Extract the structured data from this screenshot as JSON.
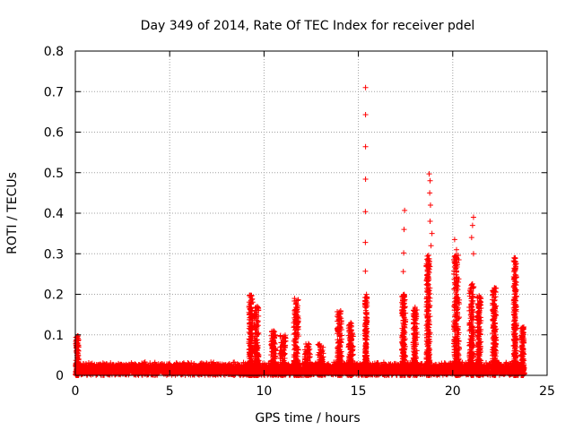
{
  "chart_data": {
    "type": "scatter",
    "title": "Day 349 of 2014, Rate Of TEC Index for receiver pdel",
    "xlabel": "GPS time / hours",
    "ylabel": "ROTI / TECUs",
    "xlim": [
      0,
      25
    ],
    "ylim": [
      0,
      0.8
    ],
    "x_ticks": [
      0,
      5,
      10,
      15,
      20,
      25
    ],
    "x_tick_labels": [
      "0",
      "5",
      "10",
      "15",
      "20",
      "25"
    ],
    "y_ticks": [
      0,
      0.1,
      0.2,
      0.3,
      0.4,
      0.5,
      0.6,
      0.7,
      0.8
    ],
    "y_tick_labels": [
      "0",
      "0.1",
      "0.2",
      "0.3",
      "0.4",
      "0.5",
      "0.6",
      "0.7",
      "0.8"
    ],
    "grid": true,
    "marker": "+",
    "colors": {
      "marker": "#ff0000",
      "grid": "#a0a0a0",
      "axis": "#000000"
    },
    "background": {
      "x_range": [
        0,
        23.8
      ],
      "level": 0.025,
      "spread": 0.012
    },
    "clusters": [
      {
        "x": 0.1,
        "width": 0.15,
        "peak": 0.1
      },
      {
        "x": 9.3,
        "width": 0.2,
        "peak": 0.2
      },
      {
        "x": 9.6,
        "width": 0.25,
        "peak": 0.17
      },
      {
        "x": 10.5,
        "width": 0.25,
        "peak": 0.11
      },
      {
        "x": 11.0,
        "width": 0.3,
        "peak": 0.1
      },
      {
        "x": 11.7,
        "width": 0.25,
        "peak": 0.19
      },
      {
        "x": 12.3,
        "width": 0.3,
        "peak": 0.08
      },
      {
        "x": 13.0,
        "width": 0.3,
        "peak": 0.08
      },
      {
        "x": 14.0,
        "width": 0.25,
        "peak": 0.16
      },
      {
        "x": 14.6,
        "width": 0.25,
        "peak": 0.13
      },
      {
        "x": 15.4,
        "width": 0.12,
        "peak": 0.2
      },
      {
        "x": 17.4,
        "width": 0.2,
        "peak": 0.2
      },
      {
        "x": 18.0,
        "width": 0.2,
        "peak": 0.17
      },
      {
        "x": 18.7,
        "width": 0.2,
        "peak": 0.3
      },
      {
        "x": 20.2,
        "width": 0.3,
        "peak": 0.3
      },
      {
        "x": 21.0,
        "width": 0.25,
        "peak": 0.23
      },
      {
        "x": 21.4,
        "width": 0.2,
        "peak": 0.2
      },
      {
        "x": 22.2,
        "width": 0.2,
        "peak": 0.22
      },
      {
        "x": 23.3,
        "width": 0.15,
        "peak": 0.29
      },
      {
        "x": 23.7,
        "width": 0.15,
        "peak": 0.12
      }
    ],
    "highlighted_points": [
      {
        "x": 15.38,
        "y": 0.71
      },
      {
        "x": 15.38,
        "y": 0.643
      },
      {
        "x": 15.38,
        "y": 0.564
      },
      {
        "x": 15.38,
        "y": 0.484
      },
      {
        "x": 15.37,
        "y": 0.404
      },
      {
        "x": 15.37,
        "y": 0.328
      },
      {
        "x": 15.37,
        "y": 0.257
      },
      {
        "x": 17.45,
        "y": 0.407
      },
      {
        "x": 17.42,
        "y": 0.36
      },
      {
        "x": 17.4,
        "y": 0.302
      },
      {
        "x": 17.38,
        "y": 0.256
      },
      {
        "x": 18.75,
        "y": 0.497
      },
      {
        "x": 18.8,
        "y": 0.48
      },
      {
        "x": 18.78,
        "y": 0.45
      },
      {
        "x": 18.82,
        "y": 0.42
      },
      {
        "x": 18.8,
        "y": 0.38
      },
      {
        "x": 18.9,
        "y": 0.35
      },
      {
        "x": 18.85,
        "y": 0.32
      },
      {
        "x": 20.1,
        "y": 0.335
      },
      {
        "x": 20.2,
        "y": 0.31
      },
      {
        "x": 20.15,
        "y": 0.29
      },
      {
        "x": 21.1,
        "y": 0.39
      },
      {
        "x": 21.05,
        "y": 0.37
      },
      {
        "x": 21.0,
        "y": 0.34
      },
      {
        "x": 21.1,
        "y": 0.3
      },
      {
        "x": 23.3,
        "y": 0.29
      },
      {
        "x": 23.35,
        "y": 0.275
      }
    ]
  }
}
